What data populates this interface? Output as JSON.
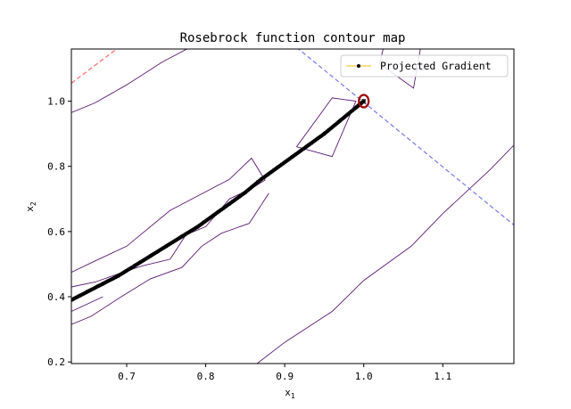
{
  "chart_data": {
    "type": "line",
    "title": "Rosebrock function contour map",
    "xlabel": "x",
    "xlabel_sub": "1",
    "ylabel": "x",
    "ylabel_sub": "2",
    "xlim": [
      0.63,
      1.19
    ],
    "ylim": [
      0.195,
      1.16
    ],
    "x_ticks": [
      0.7,
      0.8,
      0.9,
      1.0,
      1.1
    ],
    "x_tick_labels": [
      "0.7",
      "0.8",
      "0.9",
      "1.0",
      "1.1"
    ],
    "y_ticks": [
      0.2,
      0.4,
      0.6,
      0.8,
      1.0
    ],
    "y_tick_labels": [
      "0.2",
      "0.4",
      "0.6",
      "0.8",
      "1.0"
    ],
    "grid": false,
    "legend": {
      "placement": "top-right",
      "entries": [
        "Projected Gradient"
      ]
    },
    "colors": {
      "contour": "#5b1a72",
      "path": "#000000",
      "legend_line": "#f2c200",
      "minimum_marker": "#a00000",
      "dashed_red": "#ff6666",
      "dashed_blue": "#7777ee"
    },
    "contours": [
      {
        "name": "contour-upper-left-a",
        "points": [
          [
            0.63,
            0.965
          ],
          [
            0.66,
            0.995
          ],
          [
            0.7,
            1.05
          ],
          [
            0.745,
            1.12
          ],
          [
            0.78,
            1.165
          ]
        ]
      },
      {
        "name": "contour-band-upper",
        "points": [
          [
            0.63,
            0.475
          ],
          [
            0.66,
            0.51
          ],
          [
            0.7,
            0.555
          ],
          [
            0.755,
            0.665
          ],
          [
            0.83,
            0.76
          ],
          [
            0.858,
            0.825
          ],
          [
            0.875,
            0.758
          ],
          [
            0.86,
            0.735
          ],
          [
            0.83,
            0.7
          ],
          [
            0.8,
            0.615
          ],
          [
            0.775,
            0.59
          ],
          [
            0.755,
            0.515
          ],
          [
            0.72,
            0.495
          ],
          [
            0.695,
            0.475
          ],
          [
            0.66,
            0.445
          ],
          [
            0.63,
            0.43
          ]
        ]
      },
      {
        "name": "contour-band-lower",
        "points": [
          [
            0.63,
            0.315
          ],
          [
            0.655,
            0.34
          ],
          [
            0.69,
            0.395
          ],
          [
            0.73,
            0.455
          ],
          [
            0.77,
            0.49
          ],
          [
            0.795,
            0.555
          ],
          [
            0.82,
            0.595
          ],
          [
            0.855,
            0.625
          ],
          [
            0.88,
            0.718
          ]
        ]
      },
      {
        "name": "contour-band-lower-b",
        "points": [
          [
            0.63,
            0.355
          ],
          [
            0.67,
            0.4
          ]
        ]
      },
      {
        "name": "contour-diamond",
        "points": [
          [
            0.915,
            0.86
          ],
          [
            0.96,
            1.01
          ],
          [
            0.99,
            1.0
          ],
          [
            0.975,
            0.915
          ],
          [
            0.96,
            0.83
          ],
          [
            0.915,
            0.86
          ]
        ]
      },
      {
        "name": "contour-upper-right",
        "points": [
          [
            1.025,
            1.165
          ],
          [
            1.02,
            1.115
          ],
          [
            1.063,
            1.04
          ],
          [
            1.072,
            1.165
          ]
        ]
      },
      {
        "name": "contour-right-arc",
        "points": [
          [
            0.865,
            0.195
          ],
          [
            0.9,
            0.26
          ],
          [
            0.96,
            0.355
          ],
          [
            1.0,
            0.45
          ],
          [
            1.06,
            0.555
          ],
          [
            1.1,
            0.655
          ],
          [
            1.16,
            0.79
          ],
          [
            1.19,
            0.865
          ]
        ]
      }
    ],
    "reference_lines": [
      {
        "name": "dashed-red-line",
        "style": "dashed",
        "points": [
          [
            0.63,
            1.055
          ],
          [
            0.69,
            1.165
          ]
        ]
      },
      {
        "name": "dashed-blue-line",
        "style": "dashed",
        "points": [
          [
            0.915,
            1.165
          ],
          [
            1.19,
            0.62
          ]
        ]
      }
    ],
    "series": [
      {
        "name": "Projected Gradient",
        "style": "line-with-dots",
        "x": [
          0.63,
          0.65,
          0.67,
          0.69,
          0.71,
          0.73,
          0.75,
          0.77,
          0.79,
          0.81,
          0.83,
          0.85,
          0.87,
          0.89,
          0.91,
          0.93,
          0.95,
          0.97,
          0.99,
          1.0
        ],
        "y": [
          0.39,
          0.415,
          0.44,
          0.465,
          0.495,
          0.525,
          0.555,
          0.585,
          0.615,
          0.65,
          0.685,
          0.72,
          0.76,
          0.795,
          0.83,
          0.865,
          0.9,
          0.94,
          0.98,
          1.0
        ]
      }
    ],
    "minimum_marker": {
      "x": 1.0,
      "y": 1.0,
      "symbol": "O",
      "label": "x"
    }
  }
}
